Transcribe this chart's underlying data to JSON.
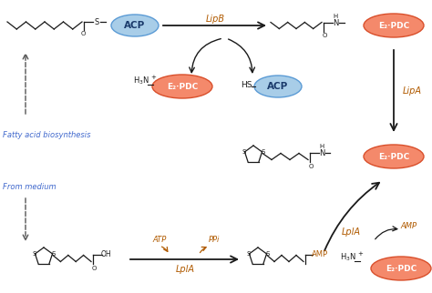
{
  "bg_color": "#ffffff",
  "blue_fill": "#a8cde8",
  "blue_edge": "#5b9bd5",
  "red_fill": "#f4896b",
  "red_edge": "#d94f2b",
  "enz_color": "#b05a00",
  "blue_text": "#4169CD",
  "arr_color": "#1a1a1a",
  "chain_color": "#1a1a1a",
  "ACP_label": "ACP",
  "E2PDC_label": "E₂·PDC",
  "LipB_label": "LipB",
  "LipA_label": "LipA",
  "LplA_label": "LplA",
  "ATP_label": "ATP",
  "PPi_label": "PPi",
  "AMP_label": "AMP",
  "fatty_acid_label": "Fatty acid biosynthesis",
  "from_medium_label": "From medium"
}
